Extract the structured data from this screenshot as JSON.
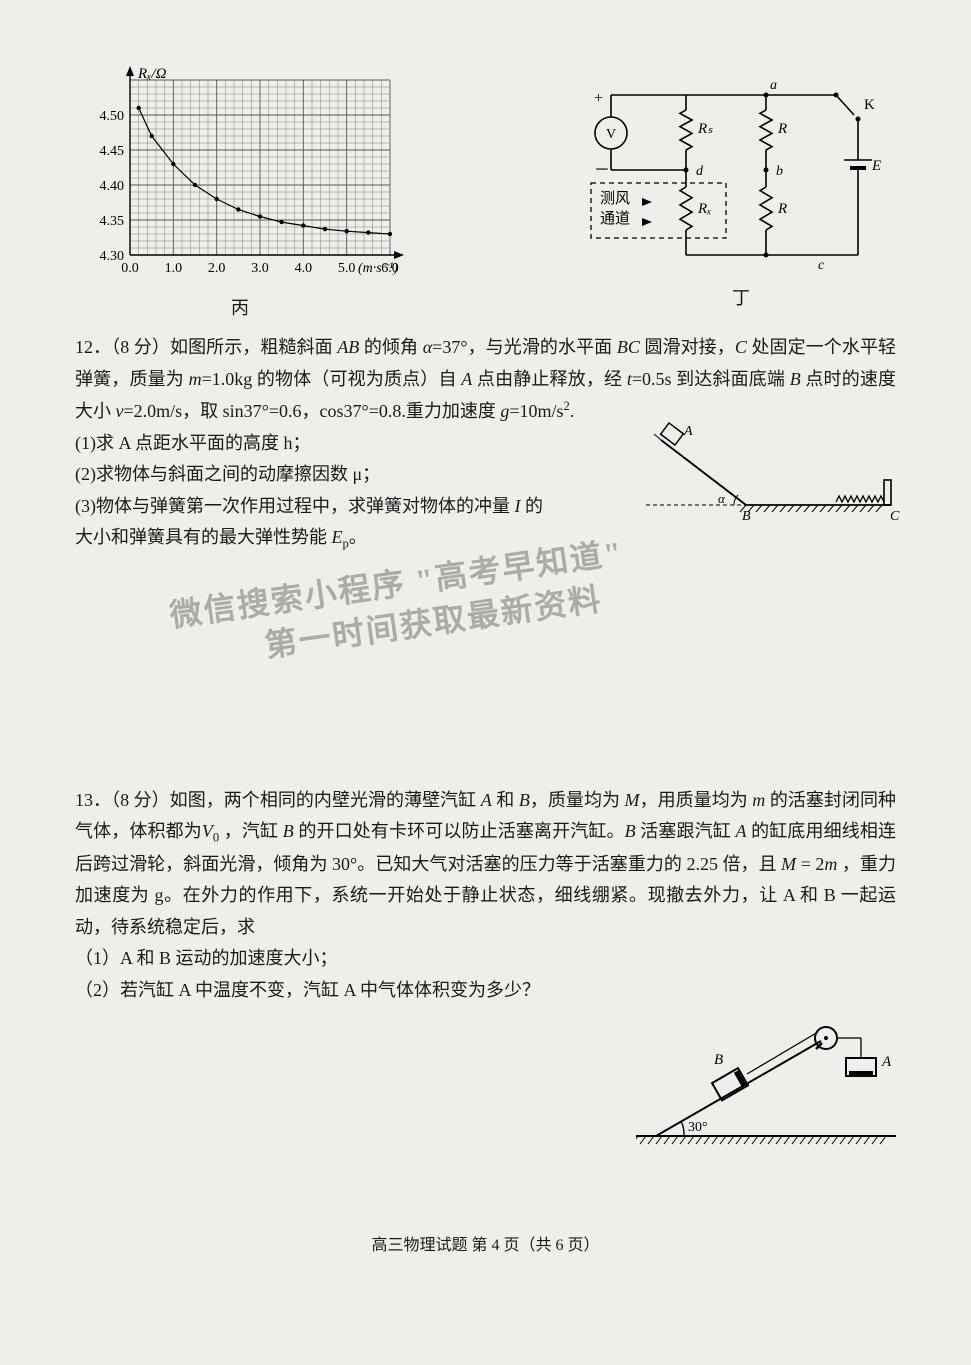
{
  "chart": {
    "title_y": "Rₓ/Ω",
    "title_x": "v/(m·s⁻¹)",
    "ylim": [
      4.3,
      4.55
    ],
    "xlim": [
      0,
      6.0
    ],
    "ytick_labels": [
      "4.30",
      "4.35",
      "4.40",
      "4.45",
      "4.50"
    ],
    "ytick_positions": [
      4.3,
      4.35,
      4.4,
      4.45,
      4.5
    ],
    "xtick_labels": [
      "0.0",
      "1.0",
      "2.0",
      "3.0",
      "4.0",
      "5.0",
      "6.0"
    ],
    "xtick_positions": [
      0,
      1,
      2,
      3,
      4,
      5,
      6
    ],
    "data_points": [
      {
        "x": 0.2,
        "y": 4.51
      },
      {
        "x": 0.5,
        "y": 4.47
      },
      {
        "x": 1.0,
        "y": 4.43
      },
      {
        "x": 1.5,
        "y": 4.4
      },
      {
        "x": 2.0,
        "y": 4.38
      },
      {
        "x": 2.5,
        "y": 4.365
      },
      {
        "x": 3.0,
        "y": 4.355
      },
      {
        "x": 3.5,
        "y": 4.347
      },
      {
        "x": 4.0,
        "y": 4.342
      },
      {
        "x": 4.5,
        "y": 4.337
      },
      {
        "x": 5.0,
        "y": 4.334
      },
      {
        "x": 5.5,
        "y": 4.332
      },
      {
        "x": 6.0,
        "y": 4.33
      }
    ],
    "grid_color": "#555555",
    "axis_color": "#000000",
    "bg_color": "#f0eee8",
    "line_color": "#000000",
    "marker_style": "circle",
    "marker_radius": 2.2,
    "line_width": 1.2,
    "label": "丙"
  },
  "circuit": {
    "node_a": "a",
    "node_b": "b",
    "node_c": "c",
    "node_d": "d",
    "voltmeter": "V",
    "Rs": "Rₛ",
    "R1": "R",
    "R2": "R",
    "Rx": "Rₓ",
    "switch": "K",
    "emf": "E",
    "wind_channel_line1": "测风",
    "wind_channel_line2": "通道",
    "plus": "+",
    "minus": "－",
    "label": "丁",
    "line_color": "#000000",
    "dash_color": "#000000"
  },
  "q12": {
    "header": "12．（8 分）如图所示，粗糙斜面 AB 的倾角 α=37°，与光滑的水平面 BC 圆滑对接，C 处固定一个水平轻弹簧，质量为 m=1.0kg 的物体（可视为质点）自 A 点由静止释放，经 t=0.5s 到达斜面底端 B 点时的速度大小 v=2.0m/s，取 sin37°=0.6，cos37°=0.8.重力加速度 g=10m/s².",
    "p1": "(1)求 A 点距水平面的高度 h；",
    "p2": "(2)求物体与斜面之间的动摩擦因数 μ；",
    "p3": "(3)物体与弹簧第一次作用过程中，求弹簧对物体的冲量 I 的大小和弹簧具有的最大弹性势能 Eₚ。",
    "fig_labels": {
      "A": "A",
      "B": "B",
      "C": "C",
      "alpha": "α"
    }
  },
  "watermark": {
    "line1": "微信搜索小程序 \"高考早知道\"",
    "line2": "第一时间获取最新资料"
  },
  "q13": {
    "header": "13．（8 分）如图，两个相同的内壁光滑的薄壁汽缸 A 和 B，质量均为 M，用质量均为 m 的活塞封闭同种气体，体积都为 V₀ ，汽缸 B 的开口处有卡环可以防止活塞离开汽缸。B 活塞跟汽缸 A 的缸底用细线相连后跨过滑轮，斜面光滑，倾角为 30°。已知大气对活塞的压力等于活塞重力的 2.25 倍，且 M = 2m ，重力加速度为 g。在外力的作用下，系统一开始处于静止状态，细线绷紧。现撤去外力，让 A 和 B 一起运动，待系统稳定后，求",
    "p1": "（1）A 和 B 运动的加速度大小；",
    "p2": "（2）若汽缸 A 中温度不变，汽缸 A 中气体体积变为多少？",
    "fig_labels": {
      "A": "A",
      "B": "B",
      "angle": "30°"
    }
  },
  "footer": "高三物理试题   第 4 页（共 6 页）"
}
